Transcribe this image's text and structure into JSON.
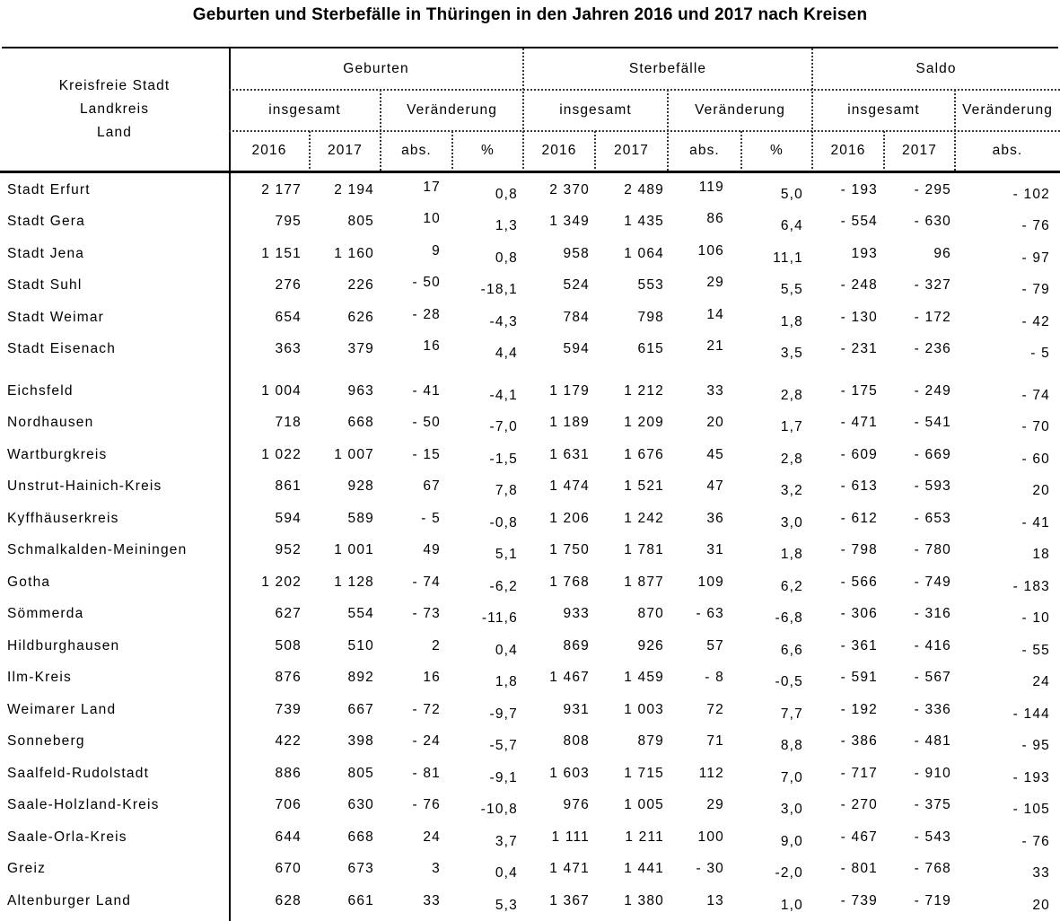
{
  "title": "Geburten und Sterbefälle in Thüringen in den Jahren 2016 und 2017 nach Kreisen",
  "colors": {
    "text": "#000000",
    "background": "#ffffff",
    "rule": "#000000"
  },
  "table": {
    "row_header": {
      "lines": [
        "Kreisfreie Stadt",
        "Landkreis",
        "Land"
      ]
    },
    "groups": [
      {
        "label": "Geburten",
        "subgroups": [
          {
            "label": "insgesamt",
            "cols": [
              "2016",
              "2017"
            ]
          },
          {
            "label": "Veränderung",
            "cols": [
              "abs.",
              "%"
            ]
          }
        ]
      },
      {
        "label": "Sterbefälle",
        "subgroups": [
          {
            "label": "insgesamt",
            "cols": [
              "2016",
              "2017"
            ]
          },
          {
            "label": "Veränderung",
            "cols": [
              "abs.",
              "%"
            ]
          }
        ]
      },
      {
        "label": "Saldo",
        "subgroups": [
          {
            "label": "insgesamt",
            "cols": [
              "2016",
              "2017"
            ]
          },
          {
            "label": "Veränderung",
            "cols": [
              "abs."
            ]
          }
        ]
      }
    ],
    "sections": [
      {
        "name": "kreisfreie-staedte",
        "rows": [
          {
            "name": "Stadt Erfurt",
            "values": [
              "2 177",
              "2 194",
              "17",
              "0,8",
              "2 370",
              "2 489",
              "119",
              "5,0",
              "- 193",
              "- 295",
              "- 102"
            ]
          },
          {
            "name": "Stadt Gera",
            "values": [
              "795",
              "805",
              "10",
              "1,3",
              "1 349",
              "1 435",
              "86",
              "6,4",
              "- 554",
              "- 630",
              "- 76"
            ]
          },
          {
            "name": "Stadt Jena",
            "values": [
              "1 151",
              "1 160",
              "9",
              "0,8",
              "958",
              "1 064",
              "106",
              "11,1",
              "193",
              "96",
              "- 97"
            ]
          },
          {
            "name": "Stadt Suhl",
            "values": [
              "276",
              "226",
              "- 50",
              "-18,1",
              "524",
              "553",
              "29",
              "5,5",
              "- 248",
              "- 327",
              "- 79"
            ]
          },
          {
            "name": "Stadt Weimar",
            "values": [
              "654",
              "626",
              "- 28",
              "-4,3",
              "784",
              "798",
              "14",
              "1,8",
              "- 130",
              "- 172",
              "- 42"
            ]
          },
          {
            "name": "Stadt Eisenach",
            "values": [
              "363",
              "379",
              "16",
              "4,4",
              "594",
              "615",
              "21",
              "3,5",
              "- 231",
              "- 236",
              "- 5"
            ]
          }
        ]
      },
      {
        "name": "landkreise",
        "rows": [
          {
            "name": "Eichsfeld",
            "values": [
              "1 004",
              "963",
              "- 41",
              "-4,1",
              "1 179",
              "1 212",
              "33",
              "2,8",
              "- 175",
              "- 249",
              "- 74"
            ]
          },
          {
            "name": "Nordhausen",
            "values": [
              "718",
              "668",
              "- 50",
              "-7,0",
              "1 189",
              "1 209",
              "20",
              "1,7",
              "- 471",
              "- 541",
              "- 70"
            ]
          },
          {
            "name": "Wartburgkreis",
            "values": [
              "1 022",
              "1 007",
              "- 15",
              "-1,5",
              "1 631",
              "1 676",
              "45",
              "2,8",
              "- 609",
              "- 669",
              "- 60"
            ]
          },
          {
            "name": "Unstrut-Hainich-Kreis",
            "values": [
              "861",
              "928",
              "67",
              "7,8",
              "1 474",
              "1 521",
              "47",
              "3,2",
              "- 613",
              "- 593",
              "20"
            ]
          },
          {
            "name": "Kyffhäuserkreis",
            "values": [
              "594",
              "589",
              "- 5",
              "-0,8",
              "1 206",
              "1 242",
              "36",
              "3,0",
              "- 612",
              "- 653",
              "- 41"
            ]
          },
          {
            "name": "Schmalkalden-Meiningen",
            "values": [
              "952",
              "1 001",
              "49",
              "5,1",
              "1 750",
              "1 781",
              "31",
              "1,8",
              "- 798",
              "- 780",
              "18"
            ]
          },
          {
            "name": "Gotha",
            "values": [
              "1 202",
              "1 128",
              "- 74",
              "-6,2",
              "1 768",
              "1 877",
              "109",
              "6,2",
              "- 566",
              "- 749",
              "- 183"
            ]
          },
          {
            "name": "Sömmerda",
            "values": [
              "627",
              "554",
              "- 73",
              "-11,6",
              "933",
              "870",
              "- 63",
              "-6,8",
              "- 306",
              "- 316",
              "- 10"
            ]
          },
          {
            "name": "Hildburghausen",
            "values": [
              "508",
              "510",
              "2",
              "0,4",
              "869",
              "926",
              "57",
              "6,6",
              "- 361",
              "- 416",
              "- 55"
            ]
          },
          {
            "name": "Ilm-Kreis",
            "values": [
              "876",
              "892",
              "16",
              "1,8",
              "1 467",
              "1 459",
              "- 8",
              "-0,5",
              "- 591",
              "- 567",
              "24"
            ]
          },
          {
            "name": "Weimarer Land",
            "values": [
              "739",
              "667",
              "- 72",
              "-9,7",
              "931",
              "1 003",
              "72",
              "7,7",
              "- 192",
              "- 336",
              "- 144"
            ]
          },
          {
            "name": "Sonneberg",
            "values": [
              "422",
              "398",
              "- 24",
              "-5,7",
              "808",
              "879",
              "71",
              "8,8",
              "- 386",
              "- 481",
              "- 95"
            ]
          },
          {
            "name": "Saalfeld-Rudolstadt",
            "values": [
              "886",
              "805",
              "- 81",
              "-9,1",
              "1 603",
              "1 715",
              "112",
              "7,0",
              "- 717",
              "- 910",
              "- 193"
            ]
          },
          {
            "name": "Saale-Holzland-Kreis",
            "values": [
              "706",
              "630",
              "- 76",
              "-10,8",
              "976",
              "1 005",
              "29",
              "3,0",
              "- 270",
              "- 375",
              "- 105"
            ]
          },
          {
            "name": "Saale-Orla-Kreis",
            "values": [
              "644",
              "668",
              "24",
              "3,7",
              "1 111",
              "1 211",
              "100",
              "9,0",
              "- 467",
              "- 543",
              "- 76"
            ]
          },
          {
            "name": "Greiz",
            "values": [
              "670",
              "673",
              "3",
              "0,4",
              "1 471",
              "1 441",
              "- 30",
              "-2,0",
              "- 801",
              "- 768",
              "33"
            ]
          },
          {
            "name": "Altenburger Land",
            "values": [
              "628",
              "661",
              "33",
              "5,3",
              "1 367",
              "1 380",
              "13",
              "1,0",
              "- 739",
              "- 719",
              "20"
            ]
          }
        ]
      }
    ]
  }
}
